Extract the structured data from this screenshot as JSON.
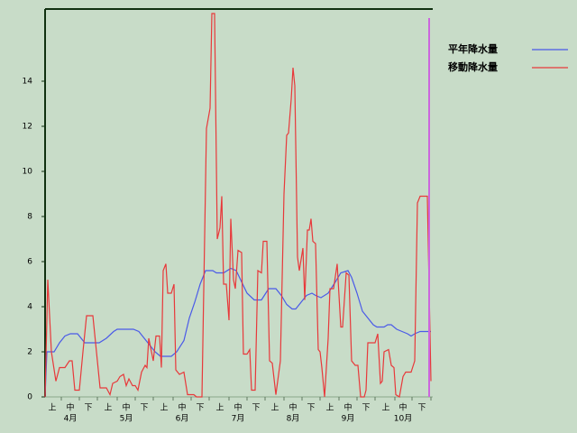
{
  "chart_data": {
    "type": "line",
    "series": [
      {
        "name": "平年降水量",
        "color": "#4a5ae8",
        "x": [
          0,
          1,
          5,
          8,
          11,
          14,
          18,
          22,
          30,
          34,
          38,
          40,
          49,
          52,
          55,
          58,
          61,
          64,
          70,
          73,
          77,
          80,
          83,
          86,
          89,
          93,
          95,
          99,
          103,
          106,
          109,
          112,
          116,
          120,
          124,
          128,
          131,
          134,
          137,
          139,
          142,
          145,
          148,
          150,
          153,
          157,
          161,
          164,
          168,
          170,
          173,
          176,
          179,
          182,
          184,
          188,
          190,
          192,
          195,
          198,
          201,
          203,
          205,
          208,
          214
        ],
        "values": [
          0,
          2,
          2,
          2.4,
          2.7,
          2.8,
          2.8,
          2.4,
          2.4,
          2.6,
          2.9,
          3,
          3,
          2.9,
          2.6,
          2.3,
          2,
          1.8,
          1.8,
          2,
          2.5,
          3.5,
          4.2,
          5,
          5.6,
          5.6,
          5.5,
          5.5,
          5.7,
          5.6,
          5.1,
          4.6,
          4.3,
          4.3,
          4.8,
          4.8,
          4.5,
          4.1,
          3.9,
          3.9,
          4.2,
          4.5,
          4.6,
          4.5,
          4.4,
          4.6,
          5.1,
          5.5,
          5.6,
          5.3,
          4.6,
          3.8,
          3.5,
          3.2,
          3.1,
          3.1,
          3.2,
          3.2,
          3,
          2.9,
          2.8,
          2.7,
          2.8,
          2.9,
          2.9
        ]
      },
      {
        "name": "移動降水量",
        "color": "#e8383a",
        "x": [
          0,
          1.5,
          3.5,
          6,
          8,
          11,
          13.5,
          15,
          16.5,
          19,
          21,
          23,
          26.5,
          28.5,
          30.5,
          34,
          36,
          37.5,
          40,
          41.5,
          43.5,
          45,
          46.5,
          48.5,
          50,
          51.5,
          53.5,
          55.5,
          56.5,
          57.5,
          60,
          61.5,
          63.5,
          64.5,
          65.5,
          67,
          68,
          70,
          71.5,
          72.5,
          74.5,
          77,
          79,
          82.5,
          84,
          87,
          89.5,
          91.5,
          92.5,
          94,
          95.5,
          97,
          98,
          99,
          100.5,
          102,
          103,
          104.5,
          105.5,
          107,
          109,
          110,
          112,
          113.5,
          114.5,
          116.5,
          118,
          120,
          121,
          123,
          124.5,
          126,
          128,
          130.5,
          132.5,
          134,
          135,
          136.5,
          137.5,
          138.5,
          140,
          141,
          143,
          144,
          145.5,
          146.5,
          147.5,
          148.5,
          150,
          151.5,
          152.5,
          153.5,
          155,
          157,
          158,
          160,
          162,
          164,
          165,
          167,
          168.5,
          170,
          172,
          173.5,
          175,
          177,
          178,
          179,
          183,
          184.5,
          186,
          187,
          188,
          190.5,
          192,
          193.5,
          194.5,
          196.5,
          198.5,
          200,
          203,
          205,
          206.5,
          208,
          212,
          214
        ],
        "values": [
          0,
          5.2,
          2,
          0.7,
          1.3,
          1.3,
          1.6,
          1.6,
          0.3,
          0.3,
          2,
          3.6,
          3.6,
          2,
          0.4,
          0.4,
          0.1,
          0.6,
          0.7,
          0.9,
          1,
          0.5,
          0.8,
          0.5,
          0.5,
          0.3,
          1.1,
          1.4,
          1.3,
          2.6,
          1.6,
          2.7,
          2.7,
          1.3,
          5.6,
          5.9,
          4.6,
          4.6,
          5,
          1.2,
          1,
          1.1,
          0.1,
          0.1,
          0,
          0,
          11.9,
          12.8,
          17,
          17,
          7,
          7.5,
          8.9,
          5,
          5,
          3.4,
          7.9,
          5.2,
          4.8,
          6.5,
          6.4,
          1.9,
          1.9,
          2.1,
          0.3,
          0.3,
          5.6,
          5.5,
          6.9,
          6.9,
          1.6,
          1.5,
          0.1,
          1.6,
          9,
          11.6,
          11.7,
          13.2,
          14.6,
          13.8,
          6.2,
          5.6,
          6.6,
          4.3,
          7.4,
          7.4,
          7.9,
          6.9,
          6.8,
          2.1,
          2,
          1.3,
          0,
          2.6,
          4.8,
          4.8,
          5.9,
          3.1,
          3.1,
          5.5,
          5.4,
          1.6,
          1.4,
          1.4,
          0,
          0,
          0.3,
          2.4,
          2.4,
          2.8,
          0.6,
          0.7,
          2,
          2.1,
          1.4,
          1.3,
          0.1,
          0,
          0.9,
          1.1,
          1.1,
          1.6,
          8.6,
          8.9,
          8.9,
          0.7
        ]
      }
    ],
    "xlim": [
      0,
      214
    ],
    "xticks": [
      {
        "value": 4,
        "label": "上"
      },
      {
        "value": 14,
        "label": "中"
      },
      {
        "value": 24,
        "label": "下"
      },
      {
        "value": 35,
        "label": "上"
      },
      {
        "value": 45,
        "label": "中"
      },
      {
        "value": 55,
        "label": "下"
      },
      {
        "value": 66,
        "label": "上"
      },
      {
        "value": 76,
        "label": "中"
      },
      {
        "value": 86,
        "label": "下"
      },
      {
        "value": 97,
        "label": "上"
      },
      {
        "value": 107,
        "label": "中"
      },
      {
        "value": 117,
        "label": "下"
      },
      {
        "value": 127.5,
        "label": "上"
      },
      {
        "value": 137.5,
        "label": "中"
      },
      {
        "value": 147.5,
        "label": "下"
      },
      {
        "value": 158,
        "label": "上"
      },
      {
        "value": 168,
        "label": "中"
      },
      {
        "value": 178,
        "label": "下"
      },
      {
        "value": 189,
        "label": "上"
      },
      {
        "value": 198.5,
        "label": "中"
      },
      {
        "value": 209,
        "label": "下"
      }
    ],
    "month_labels": [
      {
        "value": 14,
        "label": "4月"
      },
      {
        "value": 45,
        "label": "5月"
      },
      {
        "value": 76,
        "label": "6月"
      },
      {
        "value": 107,
        "label": "7月"
      },
      {
        "value": 137.5,
        "label": "8月"
      },
      {
        "value": 168,
        "label": "9月"
      },
      {
        "value": 198.5,
        "label": "10月"
      }
    ],
    "ylim": [
      0,
      17.2
    ],
    "yticks": [
      0,
      2,
      4,
      6,
      8,
      10,
      12,
      14
    ],
    "today_marker": {
      "value": 213,
      "color": "#cc66dd"
    },
    "legend": "top-right"
  }
}
